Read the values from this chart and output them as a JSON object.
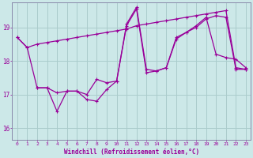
{
  "xlabel": "Windchill (Refroidissement éolien,°C)",
  "bg_color": "#cce8e8",
  "line_color": "#990099",
  "grid_color": "#aacccc",
  "ylim": [
    15.65,
    19.75
  ],
  "xlim": [
    -0.5,
    23.5
  ],
  "yticks": [
    16,
    17,
    18,
    19
  ],
  "xticks": [
    0,
    1,
    2,
    3,
    4,
    5,
    6,
    7,
    8,
    9,
    10,
    11,
    12,
    13,
    14,
    15,
    16,
    17,
    18,
    19,
    20,
    21,
    22,
    23
  ],
  "line1_x": [
    0,
    1,
    2,
    3,
    4,
    5,
    6,
    7,
    8,
    9,
    10,
    11,
    12,
    13,
    14,
    15,
    16,
    17,
    18,
    19,
    20,
    21,
    22,
    23
  ],
  "line1_y": [
    18.7,
    18.4,
    18.5,
    18.55,
    18.6,
    18.65,
    18.7,
    18.75,
    18.8,
    18.85,
    18.9,
    18.95,
    19.05,
    19.1,
    19.15,
    19.2,
    19.25,
    19.3,
    19.35,
    19.4,
    19.45,
    19.5,
    17.8,
    17.75
  ],
  "line2_x": [
    0,
    1,
    2,
    3,
    4,
    5,
    6,
    7,
    8,
    9,
    10,
    11,
    12,
    13,
    14,
    15,
    16,
    17,
    18,
    19,
    20,
    21,
    22,
    23
  ],
  "line2_y": [
    18.7,
    18.4,
    17.2,
    17.2,
    17.05,
    17.1,
    17.1,
    17.0,
    17.45,
    17.35,
    17.4,
    19.1,
    19.6,
    17.75,
    17.7,
    17.8,
    18.7,
    18.85,
    19.05,
    19.3,
    18.2,
    18.1,
    18.05,
    17.8
  ],
  "line3_x": [
    2,
    3,
    4,
    5,
    6,
    7,
    8,
    9,
    10,
    11,
    12,
    13,
    14,
    15,
    16,
    17,
    18,
    19,
    20,
    21,
    22,
    23
  ],
  "line3_y": [
    17.2,
    17.2,
    16.5,
    17.1,
    17.1,
    16.85,
    16.8,
    17.15,
    17.4,
    19.05,
    19.55,
    17.65,
    17.7,
    17.8,
    18.65,
    18.85,
    19.0,
    19.25,
    19.35,
    19.3,
    17.75,
    17.75
  ]
}
